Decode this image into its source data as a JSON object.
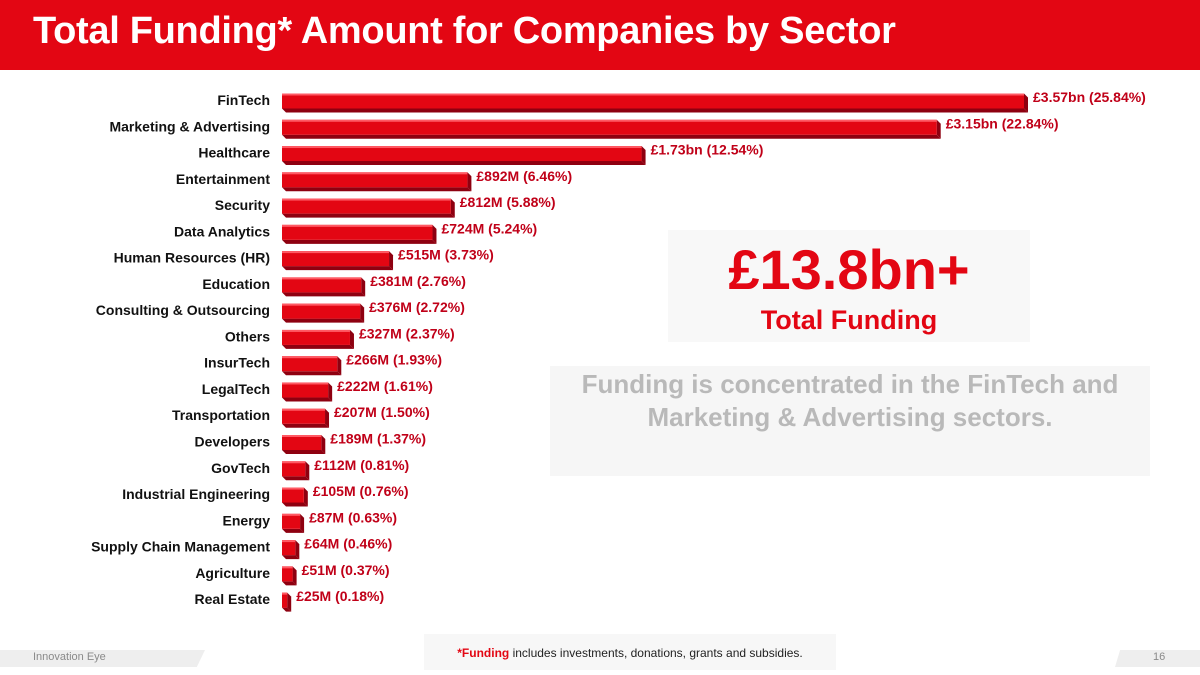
{
  "slide": {
    "title": "Total Funding* Amount for Companies by Sector",
    "total_amount": "£13.8bn+",
    "total_label": "Total Funding",
    "insight": "Funding is concentrated in the FinTech and Marketing & Advertising sectors.",
    "footnote_emphasis": "*Funding",
    "footnote_rest": " includes investments, donations, grants and subsidies.",
    "footer_brand": "Innovation Eye",
    "page_number": "16"
  },
  "colors": {
    "accent": "#e30613",
    "bar_face": "#e30613",
    "bar_side": "#8e0010",
    "bar_top": "#ff5a64"
  },
  "chart_data": {
    "type": "bar",
    "orientation": "horizontal",
    "title": "Total Funding* Amount for Companies by Sector",
    "unit": "£M",
    "categories": [
      "FinTech",
      "Marketing & Advertising",
      "Healthcare",
      "Entertainment",
      "Security",
      "Data Analytics",
      "Human Resources (HR)",
      "Education",
      "Consulting & Outsourcing",
      "Others",
      "InsurTech",
      "LegalTech",
      "Transportation",
      "Developers",
      "GovTech",
      "Industrial Engineering",
      "Energy",
      "Supply Chain Management",
      "Agriculture",
      "Real Estate"
    ],
    "values": [
      3570,
      3150,
      1730,
      892,
      812,
      724,
      515,
      381,
      376,
      327,
      266,
      222,
      207,
      189,
      112,
      105,
      87,
      64,
      51,
      25
    ],
    "value_labels": [
      "£3.57bn (25.84%)",
      "£3.15bn (22.84%)",
      "£1.73bn (12.54%)",
      "£892M (6.46%)",
      "£812M (5.88%)",
      "£724M (5.24%)",
      "£515M (3.73%)",
      "£381M (2.76%)",
      "£376M (2.72%)",
      "£327M (2.37%)",
      "£266M (1.93%)",
      "£222M (1.61%)",
      "£207M (1.50%)",
      "£189M (1.37%)",
      "£112M (0.81%)",
      "£105M (0.76%)",
      "£87M (0.63%)",
      "£64M (0.46%)",
      "£51M (0.37%)",
      "£25M (0.18%)"
    ],
    "percentages": [
      25.84,
      22.84,
      12.54,
      6.46,
      5.88,
      5.24,
      3.73,
      2.76,
      2.72,
      2.37,
      1.93,
      1.61,
      1.5,
      1.37,
      0.81,
      0.76,
      0.63,
      0.46,
      0.37,
      0.18
    ],
    "xlim": [
      0,
      3570
    ],
    "grid": false,
    "legend": "none"
  }
}
